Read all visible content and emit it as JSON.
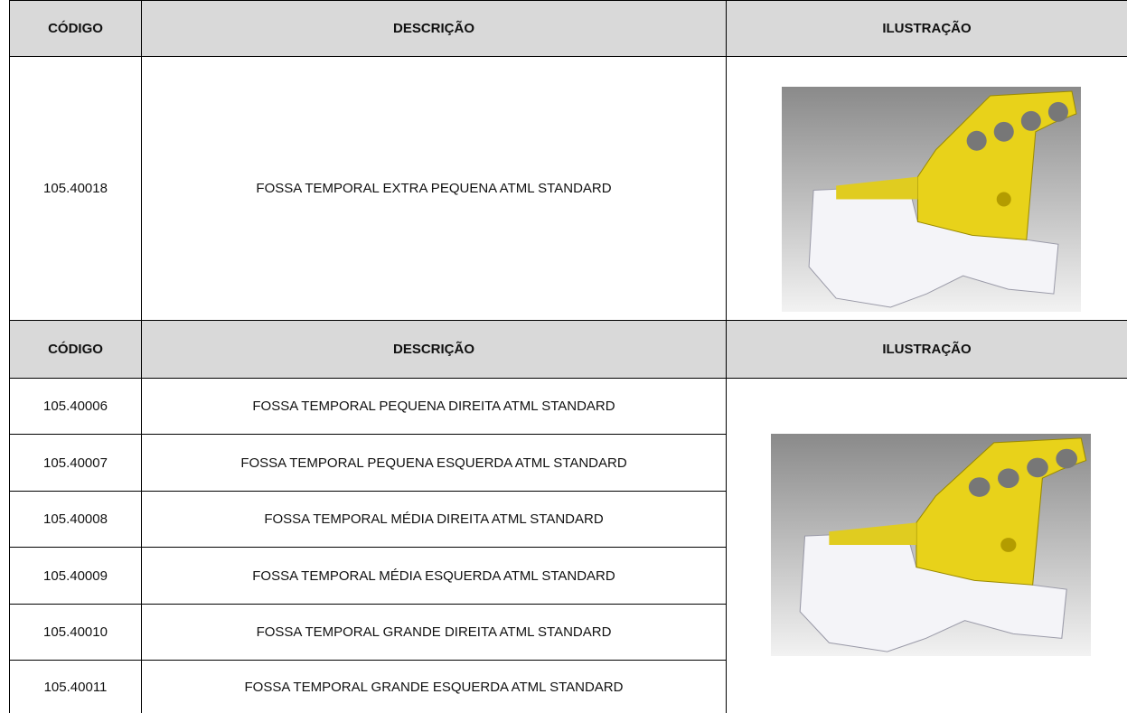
{
  "tables": [
    {
      "header": [
        "CÓDIGO",
        "DESCRIÇÃO",
        "ILUSTRAÇÃO"
      ],
      "rows": [
        [
          "105.40018",
          "FOSSA TEMPORAL EXTRA PEQUENA ATML STANDARD"
        ]
      ]
    },
    {
      "header": [
        "CÓDIGO",
        "DESCRIÇÃO",
        "ILUSTRAÇÃO"
      ],
      "rows": [
        [
          "105.40006",
          "FOSSA TEMPORAL PEQUENA DIREITA ATML STANDARD"
        ],
        [
          "105.40007",
          "FOSSA TEMPORAL PEQUENA ESQUERDA ATML STANDARD"
        ],
        [
          "105.40008",
          "FOSSA TEMPORAL MÉDIA DIREITA ATML STANDARD"
        ],
        [
          "105.40009",
          "FOSSA TEMPORAL MÉDIA ESQUERDA ATML STANDARD"
        ],
        [
          "105.40010",
          "FOSSA TEMPORAL GRANDE DIREITA ATML STANDARD"
        ],
        [
          "105.40011",
          "FOSSA TEMPORAL GRANDE ESQUERDA ATML STANDARD"
        ]
      ]
    }
  ]
}
